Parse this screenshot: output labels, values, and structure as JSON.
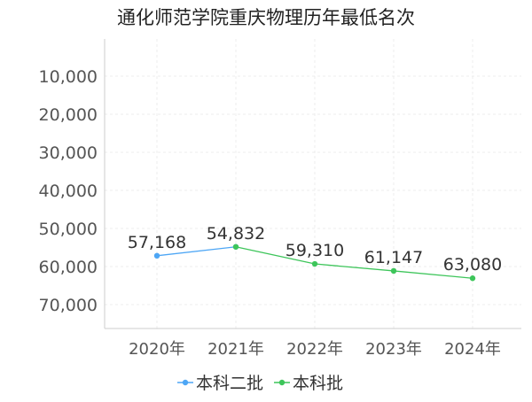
{
  "chart_data": {
    "type": "line",
    "title": "通化师范学院重庆物理历年最低名次",
    "categories": [
      "2020年",
      "2021年",
      "2022年",
      "2023年",
      "2024年"
    ],
    "x_tick_labels": [
      "2020年",
      "2021年",
      "2022年",
      "2023年",
      "2024年"
    ],
    "y_ticks": [
      10000,
      20000,
      30000,
      40000,
      50000,
      60000,
      70000
    ],
    "y_tick_labels": [
      "10,000",
      "20,000",
      "30,000",
      "40,000",
      "50,000",
      "60,000",
      "70,000"
    ],
    "ylim": [
      0,
      75000
    ],
    "y_inverted": true,
    "grid": true,
    "legend_position": "bottom",
    "series": [
      {
        "name": "本科二批",
        "color": "#4da6f5",
        "points": [
          {
            "x": "2020年",
            "y": 57168,
            "label": "57,168"
          },
          {
            "x": "2021年",
            "y": 54832,
            "label": "54,832"
          }
        ]
      },
      {
        "name": "本科批",
        "color": "#3dc55a",
        "points": [
          {
            "x": "2021年",
            "y": 54832,
            "label": ""
          },
          {
            "x": "2022年",
            "y": 59310,
            "label": "59,310"
          },
          {
            "x": "2023年",
            "y": 61147,
            "label": "61,147"
          },
          {
            "x": "2024年",
            "y": 63080,
            "label": "63,080"
          }
        ]
      }
    ]
  }
}
